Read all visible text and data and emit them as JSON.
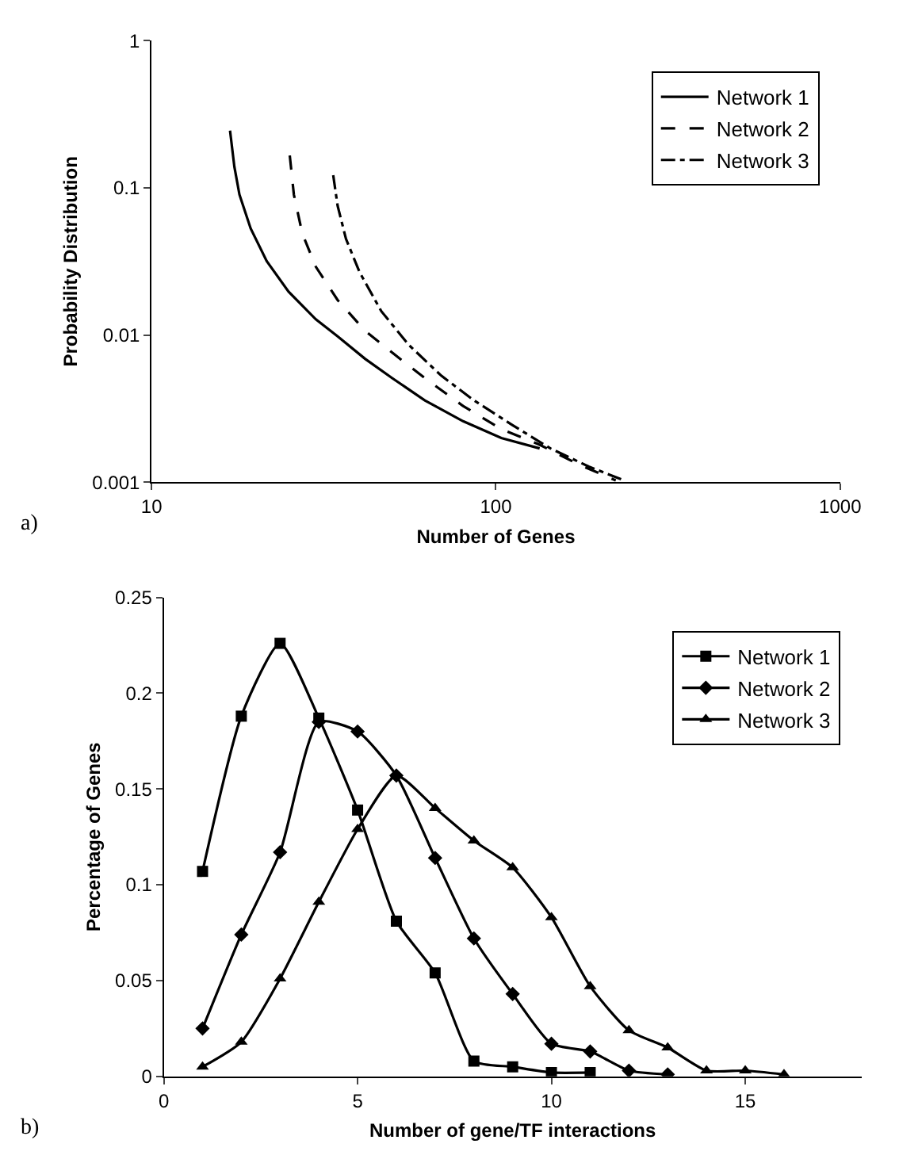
{
  "chart_data": [
    {
      "type": "line",
      "xlabel": "Number of Genes",
      "ylabel": "Probability Distribution",
      "log": "xy",
      "xlim": [
        10,
        1000
      ],
      "ylim": [
        0.001,
        1
      ],
      "xticks": [
        10,
        100,
        1000
      ],
      "yticks": [
        0.001,
        0.01,
        0.1,
        1
      ],
      "legend": "top right",
      "marker": "none",
      "annotations": [
        "a)"
      ],
      "series": [
        {
          "name": "Network 1",
          "color": "#000000",
          "line_style": "solid",
          "x": [
            16.9,
            17.4,
            18.0,
            19.4,
            21.6,
            25.0,
            30.0,
            34.7,
            41.7,
            50.0,
            62.2,
            80.3,
            103.7,
            134
          ],
          "values": [
            0.245,
            0.139,
            0.09,
            0.053,
            0.0318,
            0.0197,
            0.0128,
            0.0098,
            0.0069,
            0.0051,
            0.0036,
            0.0026,
            0.002,
            0.0017
          ]
        },
        {
          "name": "Network 2",
          "color": "#000000",
          "line_style": "dashed",
          "x": [
            25.2,
            25.9,
            27.4,
            30.0,
            34.7,
            41.7,
            50.0,
            62.2,
            80.3,
            103.7,
            134,
            173,
            223
          ],
          "values": [
            0.166,
            0.09,
            0.049,
            0.0291,
            0.0173,
            0.0107,
            0.0076,
            0.0051,
            0.0033,
            0.0023,
            0.0018,
            0.00133,
            0.00103
          ]
        },
        {
          "name": "Network 3",
          "color": "#000000",
          "line_style": "dashdot",
          "x": [
            33.7,
            34.7,
            36.7,
            40.2,
            46.5,
            55.8,
            69.4,
            86.4,
            111.6,
            144,
            186,
            236
          ],
          "values": [
            0.122,
            0.0757,
            0.045,
            0.0267,
            0.0145,
            0.0086,
            0.0053,
            0.0036,
            0.00245,
            0.0017,
            0.00128,
            0.00103
          ]
        }
      ]
    },
    {
      "type": "line",
      "xlabel": "Number of gene/TF interactions",
      "ylabel": "Percentage of Genes",
      "xlim": [
        0,
        18
      ],
      "ylim": [
        0,
        0.25
      ],
      "xticks": [
        0,
        5,
        10,
        15
      ],
      "yticks": [
        0,
        0.05,
        0.1,
        0.15,
        0.2,
        0.25
      ],
      "legend": "top right",
      "annotations": [
        "b)"
      ],
      "series": [
        {
          "name": "Network 1",
          "color": "#000000",
          "marker": "square",
          "x": [
            1,
            2,
            3,
            4,
            5,
            6,
            7,
            8,
            9,
            10,
            11
          ],
          "values": [
            0.107,
            0.188,
            0.226,
            0.187,
            0.139,
            0.081,
            0.054,
            0.008,
            0.005,
            0.002,
            0.002
          ]
        },
        {
          "name": "Network 2",
          "color": "#000000",
          "marker": "diamond",
          "x": [
            1,
            2,
            3,
            4,
            5,
            6,
            7,
            8,
            9,
            10,
            11,
            12,
            13
          ],
          "values": [
            0.025,
            0.074,
            0.117,
            0.185,
            0.18,
            0.157,
            0.114,
            0.072,
            0.043,
            0.017,
            0.013,
            0.003,
            0.001
          ]
        },
        {
          "name": "Network 3",
          "color": "#000000",
          "marker": "triangle",
          "x": [
            1,
            2,
            3,
            4,
            5,
            6,
            7,
            8,
            9,
            10,
            11,
            12,
            13,
            14,
            15,
            16
          ],
          "values": [
            0.005,
            0.018,
            0.051,
            0.091,
            0.129,
            0.157,
            0.14,
            0.123,
            0.109,
            0.083,
            0.047,
            0.024,
            0.015,
            0.003,
            0.003,
            0.001
          ]
        }
      ]
    }
  ]
}
